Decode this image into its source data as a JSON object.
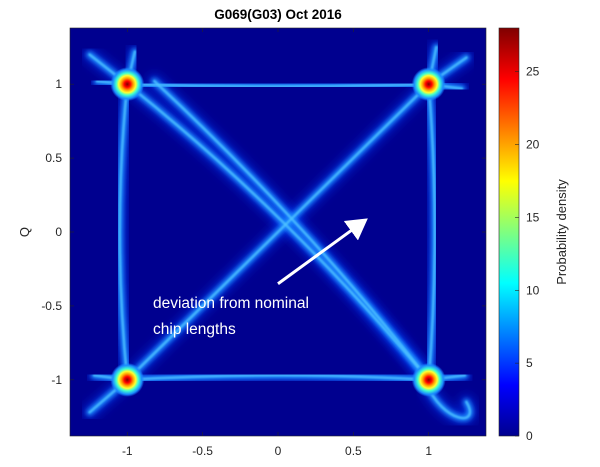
{
  "chart_data": {
    "type": "heatmap",
    "title": "G069(G03) Oct 2016",
    "xlabel": "",
    "ylabel": "Q",
    "xlim": [
      -1.38,
      1.38
    ],
    "ylim": [
      -1.38,
      1.38
    ],
    "xticks": [
      "-1",
      "-0.5",
      "0",
      "0.5",
      "1"
    ],
    "xtick_values": [
      -1,
      -0.5,
      0,
      0.5,
      1
    ],
    "yticks": [
      "1",
      "0.5",
      "0",
      "-0.5",
      "-1"
    ],
    "ytick_values": [
      1,
      0.5,
      0,
      -0.5,
      -1
    ],
    "colorbar": {
      "label": "Probability density",
      "range": [
        0,
        28
      ],
      "ticks": [
        "0",
        "5",
        "10",
        "15",
        "20",
        "25"
      ],
      "tick_values": [
        0,
        5,
        10,
        15,
        20,
        25
      ],
      "colormap": "jet"
    },
    "peaks": [
      {
        "x": -1,
        "y": 1,
        "value": 28
      },
      {
        "x": 1,
        "y": 1,
        "value": 28
      },
      {
        "x": -1,
        "y": -1,
        "value": 28
      },
      {
        "x": 1,
        "y": -1,
        "value": 28
      }
    ],
    "annotation": {
      "lines": [
        "deviation from nominal",
        "chip lengths"
      ],
      "arrow_from": [
        0,
        -0.35
      ],
      "arrow_to": [
        0.58,
        0.08
      ]
    },
    "colors": {
      "background": "#00008f",
      "trace": "#1f8fff",
      "peak_core": "#8b0000"
    }
  }
}
